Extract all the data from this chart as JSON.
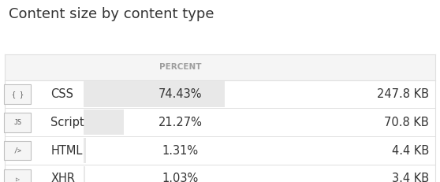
{
  "title": "Content size by content type",
  "header": "PERCENT",
  "rows": [
    {
      "icon": "{ }",
      "label": "CSS",
      "percent": "74.43%",
      "percent_val": 74.43,
      "size": "247.8 KB"
    },
    {
      "icon": "js",
      "label": "Script",
      "percent": "21.27%",
      "percent_val": 21.27,
      "size": "70.8 KB"
    },
    {
      "icon": "/>",
      "label": "HTML",
      "percent": "1.31%",
      "percent_val": 1.31,
      "size": "4.4 KB"
    },
    {
      "icon": ">",
      "label": "XHR",
      "percent": "1.03%",
      "percent_val": 1.03,
      "size": "3.4 KB"
    }
  ],
  "bg_color": "#ffffff",
  "header_bg": "#f5f5f5",
  "bar_color": "#e8e8e8",
  "border_color": "#e0e0e0",
  "header_text_color": "#9e9e9e",
  "label_color": "#333333",
  "value_color": "#333333",
  "title_color": "#333333",
  "title_fontsize": 13,
  "header_fontsize": 7.5,
  "row_fontsize": 10.5,
  "fig_width": 5.58,
  "fig_height": 2.31
}
